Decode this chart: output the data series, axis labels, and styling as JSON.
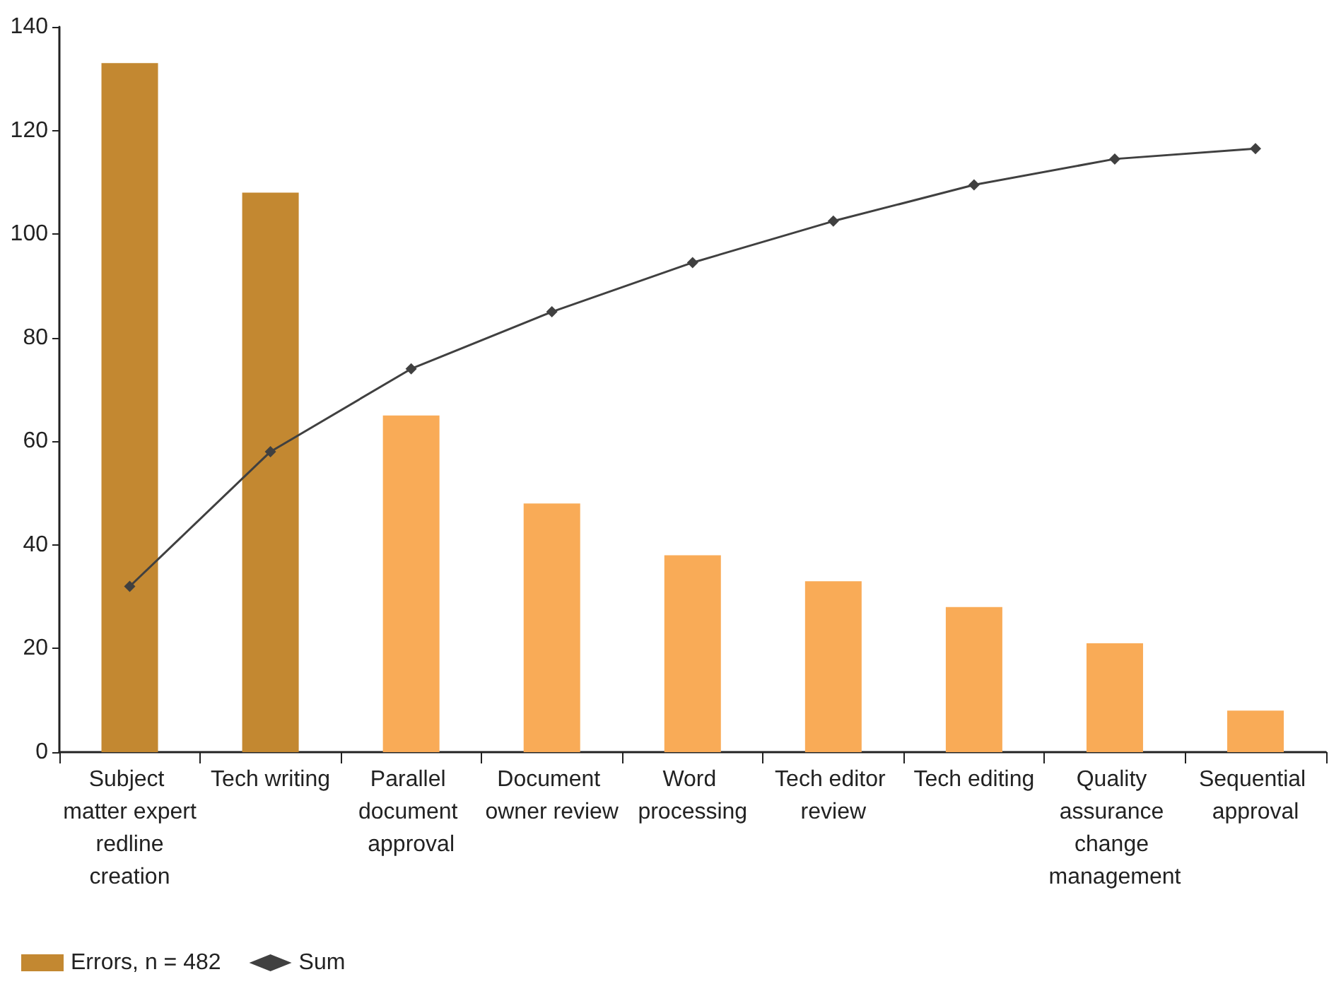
{
  "chart_data": {
    "type": "bar",
    "categories": [
      "Subject matter expert redline creation",
      "Tech writing",
      "Parallel document approval",
      "Document owner review",
      "Word processing",
      "Tech editor review",
      "Tech editing",
      "Quality assurance change management",
      "Sequential approval"
    ],
    "series": [
      {
        "name": "Errors, n = 482",
        "color": "#c38831",
        "colors": [
          "#c38831",
          "#c38831",
          "#f9ab57",
          "#f9ab57",
          "#f9ab57",
          "#f9ab57",
          "#f9ab57",
          "#f9ab57",
          "#f9ab57"
        ],
        "values": [
          133,
          108,
          65,
          48,
          38,
          33,
          28,
          21,
          8
        ]
      },
      {
        "name": "Sum",
        "type": "line",
        "color": "#404040",
        "marker": "diamond",
        "line_style": "solid",
        "values": [
          32,
          58,
          74,
          85,
          94.5,
          102.5,
          109.5,
          114.5,
          116.5
        ]
      }
    ],
    "ylim": [
      0,
      140
    ],
    "yticks": [
      0,
      20,
      40,
      60,
      80,
      100,
      120,
      140
    ],
    "grid": false,
    "legend": "bottom left"
  }
}
